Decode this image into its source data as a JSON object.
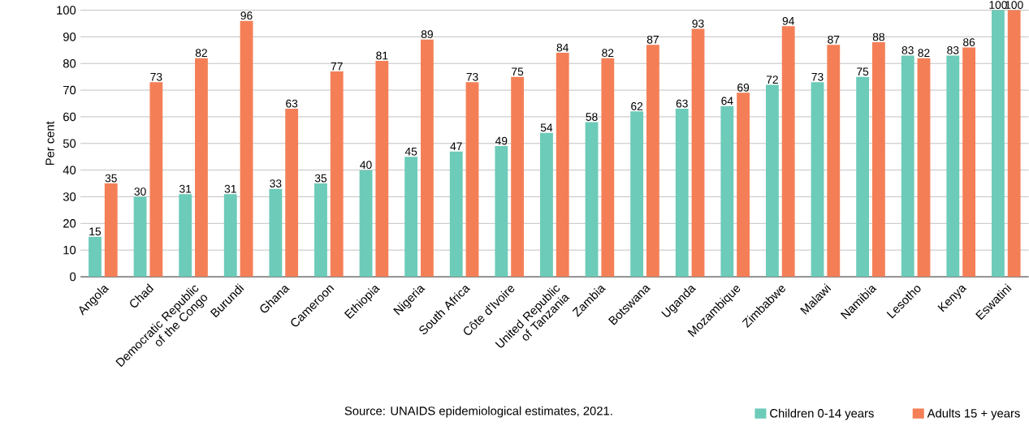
{
  "chart_data": {
    "type": "bar",
    "ylabel": "Per cent",
    "categories": [
      "Angola",
      "Chad",
      "Democratic Republic of the Congo",
      "Burundi",
      "Ghana",
      "Cameroon",
      "Ethiopia",
      "Nigeria",
      "South Africa",
      "Côte d'Ivoire",
      "United Republic of Tanzania",
      "Zambia",
      "Botswana",
      "Uganda",
      "Mozambique",
      "Zimbabwe",
      "Malawi",
      "Namibia",
      "Lesotho",
      "Kenya",
      "Eswatini"
    ],
    "series": [
      {
        "name": "Children 0-14 years",
        "color": "#6ccbb9",
        "values": [
          15,
          30,
          31,
          31,
          33,
          35,
          40,
          45,
          47,
          49,
          54,
          58,
          62,
          63,
          64,
          72,
          73,
          75,
          83,
          83,
          100
        ]
      },
      {
        "name": "Adults 15 + years",
        "color": "#f47f57",
        "values": [
          35,
          73,
          82,
          96,
          63,
          77,
          81,
          89,
          73,
          75,
          84,
          82,
          87,
          93,
          69,
          94,
          87,
          88,
          82,
          86,
          100
        ]
      }
    ],
    "ylim": [
      0,
      100
    ],
    "yticks": [
      0,
      10,
      20,
      30,
      40,
      50,
      60,
      70,
      80,
      90,
      100
    ],
    "grid": "y",
    "data_labels": true,
    "legend": "bottom right",
    "annotations": [
      "Source: UNAIDS epidemiological estimates, 2021."
    ]
  }
}
